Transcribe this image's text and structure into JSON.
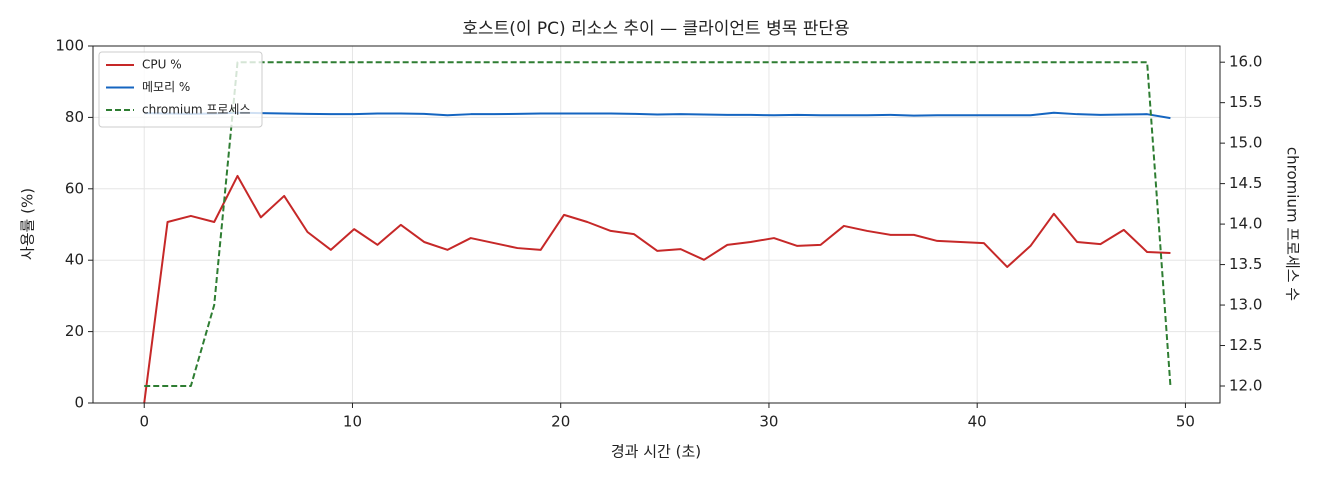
{
  "chart_data": {
    "type": "line",
    "title": "호스트(이 PC) 리소스 추이 — 클라이언트 병목 판단용",
    "x_label": "경과 시간 (초)",
    "y_label": "사용률 (%)",
    "y2_label": "chromium 프로세스 수",
    "x": [
      0,
      1.12,
      2.24,
      3.36,
      4.48,
      5.6,
      6.72,
      7.84,
      8.96,
      10.08,
      11.2,
      12.32,
      13.44,
      14.56,
      15.68,
      16.8,
      17.92,
      19.04,
      20.16,
      21.28,
      22.4,
      23.52,
      24.64,
      25.76,
      26.88,
      28,
      29.12,
      30.24,
      31.36,
      32.48,
      33.6,
      34.72,
      35.84,
      36.96,
      38.08,
      39.2,
      40.32,
      41.44,
      42.56,
      43.68,
      44.8,
      45.92,
      47.04,
      48.16,
      49.28
    ],
    "series": [
      {
        "name": "CPU %",
        "color": "#c62828",
        "linestyle": "solid",
        "axis": "y",
        "values": [
          0,
          50.7,
          52.4,
          50.7,
          63.6,
          52,
          58,
          47.9,
          42.9,
          48.7,
          44.3,
          49.9,
          45.1,
          42.9,
          46.2,
          44.8,
          43.4,
          42.9,
          52.7,
          50.7,
          48.2,
          47.3,
          42.6,
          43.1,
          40.1,
          44.3,
          45.1,
          46.2,
          44,
          44.3,
          49.6,
          48.2,
          47.1,
          47.1,
          45.4,
          45.1,
          44.8,
          38.1,
          44,
          53,
          45.1,
          44.5,
          48.5,
          42.3,
          42
        ]
      },
      {
        "name": "메모리 %",
        "color": "#1565c0",
        "linestyle": "solid",
        "axis": "y",
        "values": [
          81.2,
          81.1,
          81.0,
          81.1,
          81.3,
          81.2,
          81.1,
          81.0,
          80.9,
          80.9,
          81.1,
          81.1,
          81.0,
          80.6,
          80.9,
          80.9,
          81.0,
          81.1,
          81.1,
          81.1,
          81.1,
          81.0,
          80.8,
          80.9,
          80.8,
          80.7,
          80.7,
          80.6,
          80.7,
          80.6,
          80.6,
          80.6,
          80.7,
          80.5,
          80.6,
          80.6,
          80.6,
          80.6,
          80.6,
          81.3,
          80.9,
          80.7,
          80.8,
          80.9,
          79.8
        ]
      },
      {
        "name": "chromium 프로세스",
        "color": "#2e7d32",
        "linestyle": "dashed",
        "axis": "y2",
        "values": [
          12,
          12,
          12,
          13,
          16,
          16,
          16,
          16,
          16,
          16,
          16,
          16,
          16,
          16,
          16,
          16,
          16,
          16,
          16,
          16,
          16,
          16,
          16,
          16,
          16,
          16,
          16,
          16,
          16,
          16,
          16,
          16,
          16,
          16,
          16,
          16,
          16,
          16,
          16,
          16,
          16,
          16,
          16,
          16,
          12
        ]
      }
    ],
    "xlim": [
      -2.46,
      51.66
    ],
    "xticks": [
      0,
      10,
      20,
      30,
      40,
      50
    ],
    "ylim": [
      0,
      100
    ],
    "yticks": [
      0,
      20,
      40,
      60,
      80,
      100
    ],
    "y2lim": [
      11.79,
      16.2
    ],
    "y2ticks": [
      {
        "value": 12,
        "label": "12.0"
      },
      {
        "value": 12.5,
        "label": "12.5"
      },
      {
        "value": 13,
        "label": "13.0"
      },
      {
        "value": 13.5,
        "label": "13.5"
      },
      {
        "value": 14,
        "label": "14.0"
      },
      {
        "value": 14.5,
        "label": "14.5"
      },
      {
        "value": 15,
        "label": "15.0"
      },
      {
        "value": 15.5,
        "label": "15.5"
      },
      {
        "value": 16,
        "label": "16.0"
      }
    ],
    "grid": true,
    "legend": "upper-left"
  }
}
